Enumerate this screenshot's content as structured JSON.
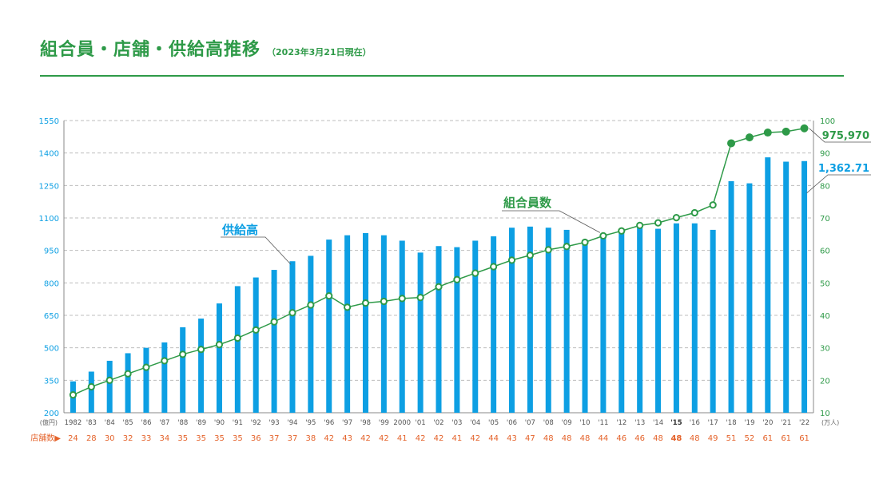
{
  "header": {
    "title": "組合員・店舗・供給高推移",
    "subtitle": "（2023年3月21日現在）"
  },
  "colors": {
    "accent_green": "#2e9a48",
    "bar_blue": "#0d9fe3",
    "store_orange": "#e4622a",
    "grid": "#bdbdbd",
    "axis_text_left": "#0d9fe3",
    "axis_text_right": "#2e9a48"
  },
  "chart_data": {
    "type": "bar",
    "categories": [
      "1982",
      "'83",
      "'84",
      "'85",
      "'86",
      "'87",
      "'88",
      "'89",
      "'90",
      "'91",
      "'92",
      "'93",
      "'94",
      "'95",
      "'96",
      "'97",
      "'98",
      "'99",
      "2000",
      "'01",
      "'02",
      "'03",
      "'04",
      "'05",
      "'06",
      "'07",
      "'08",
      "'09",
      "'10",
      "'11",
      "'12",
      "'13",
      "'14",
      "'15",
      "'16",
      "'17",
      "'18",
      "'19",
      "'20",
      "'21",
      "'22"
    ],
    "series": [
      {
        "name": "供給高",
        "type": "bar",
        "axis": "left",
        "values": [
          345,
          390,
          440,
          475,
          500,
          525,
          595,
          635,
          705,
          785,
          825,
          860,
          900,
          925,
          1000,
          1020,
          1030,
          1020,
          995,
          940,
          970,
          965,
          995,
          1015,
          1055,
          1060,
          1055,
          1045,
          1000,
          1010,
          1030,
          1055,
          1050,
          1075,
          1075,
          1045,
          1270,
          1260,
          1380,
          1360,
          1362.71
        ],
        "end_label": "1,362.71"
      },
      {
        "name": "組合員数",
        "type": "line",
        "axis": "right",
        "values": [
          15.5,
          18,
          20,
          22,
          24,
          26,
          28,
          29.5,
          31,
          33,
          35.5,
          38,
          40.8,
          43.2,
          46,
          42.5,
          43.8,
          44.3,
          45.2,
          45.5,
          48.8,
          51,
          53,
          55,
          57,
          58.5,
          60.2,
          61.2,
          62.5,
          64.5,
          66,
          67.7,
          68.5,
          70.1,
          71.6,
          74,
          93,
          94.8,
          96.3,
          96.6,
          97.6
        ],
        "end_label": "975,970"
      }
    ],
    "stores": {
      "label": "店舗数▶",
      "values": [
        24,
        28,
        30,
        32,
        33,
        34,
        35,
        35,
        35,
        35,
        36,
        37,
        37,
        38,
        42,
        43,
        42,
        42,
        41,
        42,
        42,
        41,
        42,
        44,
        43,
        47,
        48,
        48,
        48,
        44,
        46,
        46,
        48,
        48,
        48,
        49,
        51,
        52,
        61,
        61,
        61
      ]
    },
    "left_axis": {
      "unit_label": "(億円)",
      "ticks": [
        200,
        350,
        500,
        650,
        800,
        950,
        1100,
        1250,
        1400,
        1550
      ],
      "range": [
        200,
        1550
      ]
    },
    "right_axis": {
      "unit_label": "(万人)",
      "ticks": [
        10,
        20,
        30,
        40,
        50,
        60,
        70,
        80,
        90,
        100
      ],
      "range": [
        10,
        100
      ]
    },
    "annotations": [
      {
        "text": "供給高",
        "series": "供給高",
        "category_index": 12
      },
      {
        "text": "組合員数",
        "series": "組合員数",
        "category_index": 29
      }
    ],
    "grid": true,
    "bold_categories": [
      "'15"
    ]
  }
}
